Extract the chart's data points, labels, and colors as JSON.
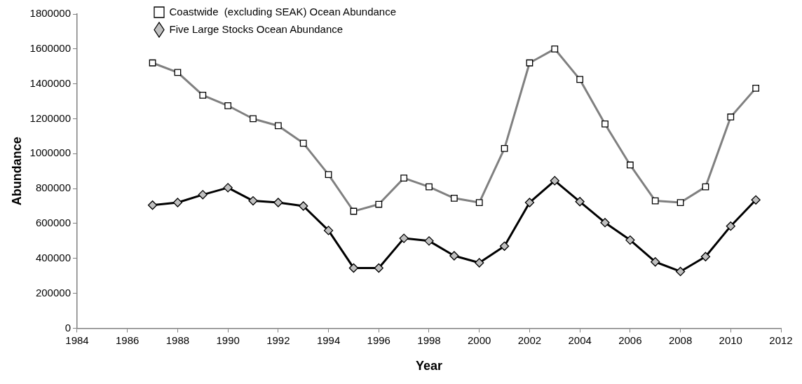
{
  "chart_data": {
    "type": "line",
    "xlabel": "Year",
    "ylabel": "Abundance",
    "legend": "top left",
    "grid": false,
    "line_style": "solid",
    "x": [
      1987,
      1988,
      1989,
      1990,
      1991,
      1992,
      1993,
      1994,
      1995,
      1996,
      1997,
      1998,
      1999,
      2000,
      2001,
      2002,
      2003,
      2004,
      2005,
      2006,
      2007,
      2008,
      2009,
      2010,
      2011
    ],
    "xlim": [
      1984,
      2012
    ],
    "xticks": [
      1984,
      1986,
      1988,
      1990,
      1992,
      1994,
      1996,
      1998,
      2000,
      2002,
      2004,
      2006,
      2008,
      2010,
      2012
    ],
    "ylim": [
      0,
      1800000
    ],
    "yticks": [
      0,
      200000,
      400000,
      600000,
      800000,
      1000000,
      1200000,
      1400000,
      1600000,
      1800000
    ],
    "series": [
      {
        "name": "Coastwide  (excluding SEAK) Ocean Abundance",
        "color": "#808080",
        "marker": "square",
        "values": [
          1520000,
          1465000,
          1335000,
          1275000,
          1200000,
          1160000,
          1060000,
          880000,
          670000,
          710000,
          860000,
          810000,
          745000,
          720000,
          1030000,
          1520000,
          1600000,
          1425000,
          1170000,
          935000,
          730000,
          720000,
          810000,
          1210000,
          1375000
        ]
      },
      {
        "name": "Five Large Stocks Ocean Abundance",
        "color": "#000000",
        "marker": "diamond",
        "values": [
          705000,
          720000,
          765000,
          805000,
          730000,
          720000,
          700000,
          560000,
          345000,
          345000,
          515000,
          500000,
          415000,
          375000,
          470000,
          720000,
          845000,
          725000,
          605000,
          505000,
          380000,
          325000,
          410000,
          585000,
          735000
        ]
      }
    ]
  }
}
